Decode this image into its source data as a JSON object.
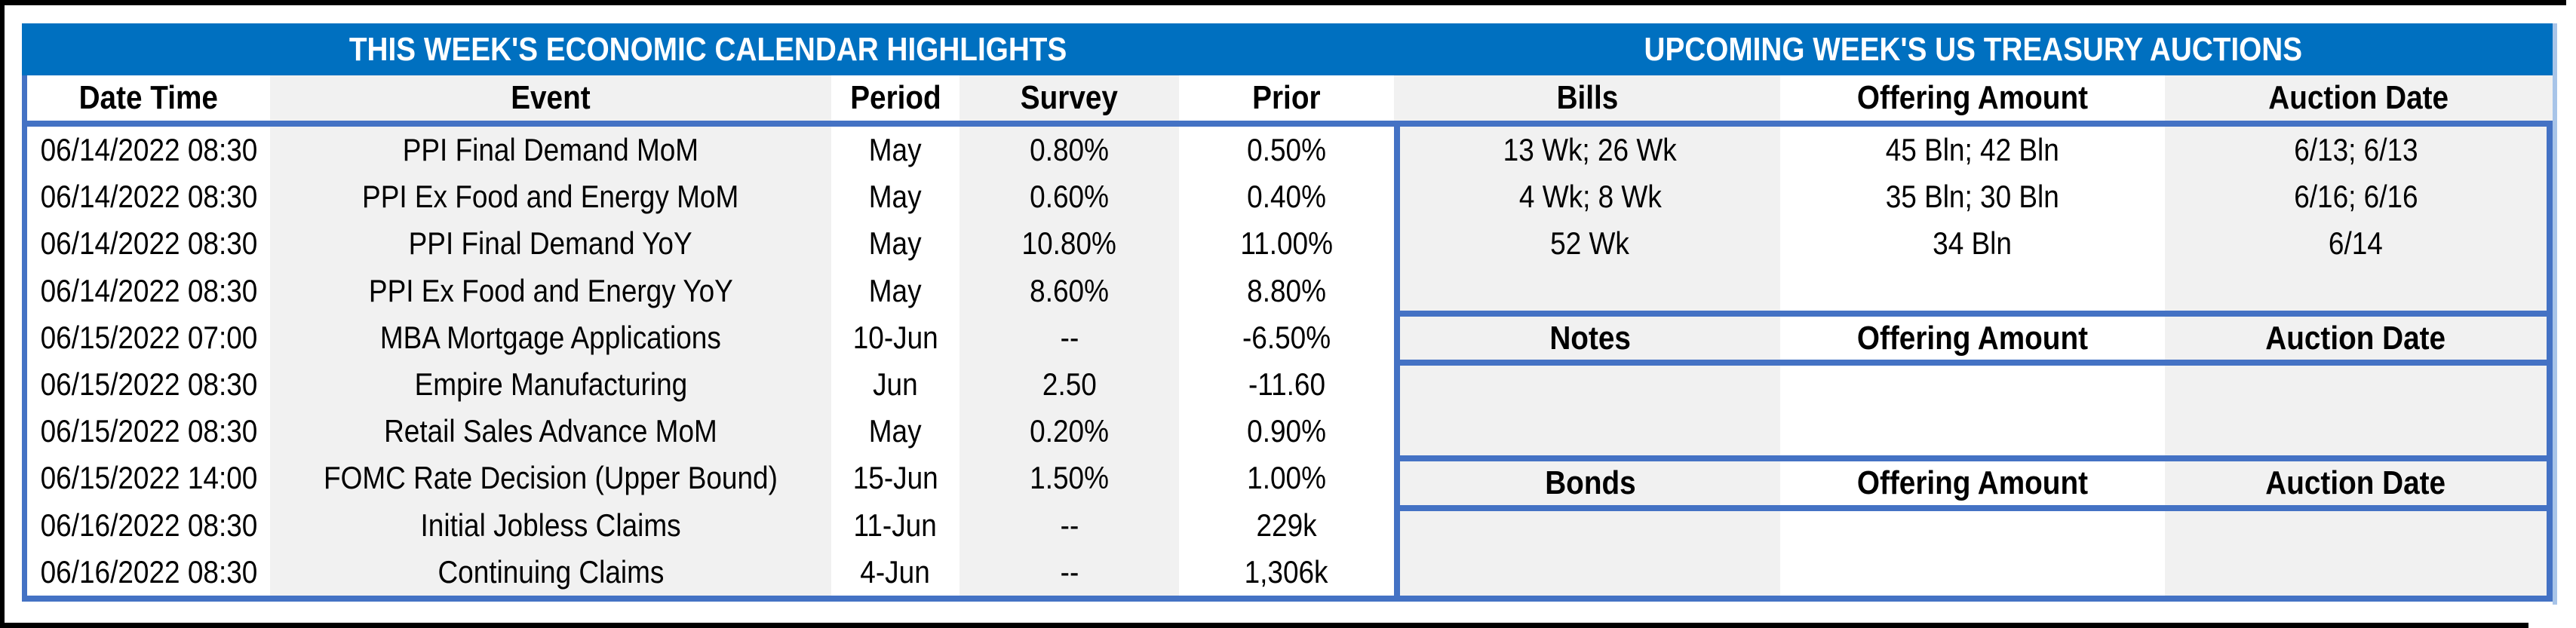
{
  "colors": {
    "title_band_blue": "#0070C0",
    "table_border_blue": "#4472C4",
    "stripe_gray": "#F1F1F1",
    "frame_black": "#000000"
  },
  "economic_calendar": {
    "title": "THIS WEEK'S ECONOMIC CALENDAR HIGHLIGHTS",
    "columns": [
      "Date Time",
      "Event",
      "Period",
      "Survey",
      "Prior"
    ],
    "rows": [
      [
        "06/14/2022 08:30",
        "PPI Final Demand MoM",
        "May",
        "0.80%",
        "0.50%"
      ],
      [
        "06/14/2022 08:30",
        "PPI Ex Food and Energy MoM",
        "May",
        "0.60%",
        "0.40%"
      ],
      [
        "06/14/2022 08:30",
        "PPI Final Demand YoY",
        "May",
        "10.80%",
        "11.00%"
      ],
      [
        "06/14/2022 08:30",
        "PPI Ex Food and Energy YoY",
        "May",
        "8.60%",
        "8.80%"
      ],
      [
        "06/15/2022 07:00",
        "MBA Mortgage Applications",
        "10-Jun",
        "--",
        "-6.50%"
      ],
      [
        "06/15/2022 08:30",
        "Empire Manufacturing",
        "Jun",
        "2.50",
        "-11.60"
      ],
      [
        "06/15/2022 08:30",
        "Retail Sales Advance MoM",
        "May",
        "0.20%",
        "0.90%"
      ],
      [
        "06/15/2022 14:00",
        "FOMC Rate Decision (Upper Bound)",
        "15-Jun",
        "1.50%",
        "1.00%"
      ],
      [
        "06/16/2022 08:30",
        "Initial Jobless Claims",
        "11-Jun",
        "--",
        "229k"
      ],
      [
        "06/16/2022 08:30",
        "Continuing Claims",
        "4-Jun",
        "--",
        "1,306k"
      ]
    ]
  },
  "treasury_auctions": {
    "title": "UPCOMING WEEK'S US TREASURY AUCTIONS",
    "sections": [
      {
        "name": "Bills",
        "columns": [
          "Bills",
          "Offering Amount",
          "Auction Date"
        ],
        "rows": [
          [
            "13 Wk; 26 Wk",
            "45 Bln; 42 Bln",
            "6/13; 6/13"
          ],
          [
            "4 Wk; 8 Wk",
            "35 Bln; 30 Bln",
            "6/16; 6/16"
          ],
          [
            "52 Wk",
            "34 Bln",
            "6/14"
          ]
        ]
      },
      {
        "name": "Notes",
        "columns": [
          "Notes",
          "Offering Amount",
          "Auction Date"
        ],
        "rows": []
      },
      {
        "name": "Bonds",
        "columns": [
          "Bonds",
          "Offering Amount",
          "Auction Date"
        ],
        "rows": []
      }
    ]
  }
}
